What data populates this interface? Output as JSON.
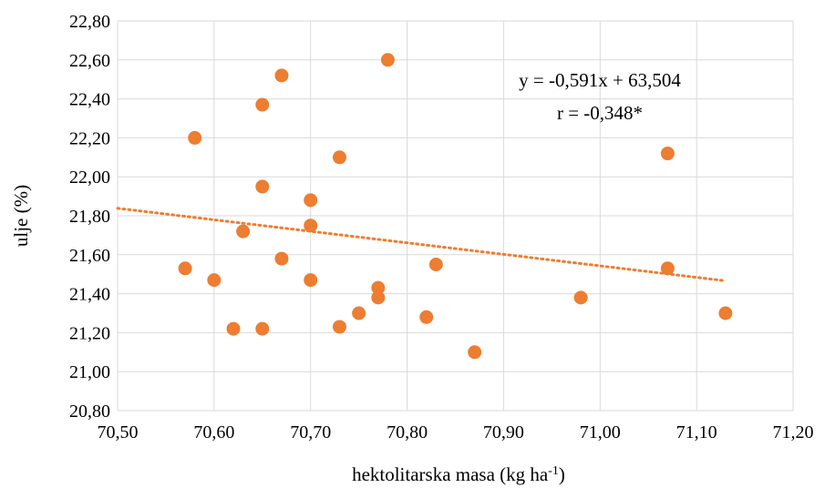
{
  "chart_data": {
    "type": "scatter",
    "xlabel": "hektolitarska masa (kg ha",
    "xlabel_sup": "-1",
    "xlabel_end": ")",
    "ylabel": "ulje (%)",
    "xlim": [
      70.5,
      71.2
    ],
    "ylim": [
      20.8,
      22.8
    ],
    "x_ticks": [
      70.5,
      70.6,
      70.7,
      70.8,
      70.9,
      71.0,
      71.1,
      71.2
    ],
    "y_ticks": [
      20.8,
      21.0,
      21.2,
      21.4,
      21.6,
      21.8,
      22.0,
      22.2,
      22.4,
      22.6,
      22.8
    ],
    "x_tick_labels": [
      "70,50",
      "70,60",
      "70,70",
      "70,80",
      "70,90",
      "71,00",
      "71,10",
      "71,20"
    ],
    "y_tick_labels": [
      "20,80",
      "21,00",
      "21,20",
      "21,40",
      "21,60",
      "21,80",
      "22,00",
      "22,20",
      "22,40",
      "22,60",
      "22,80"
    ],
    "grid": true,
    "marker_color": "#ed7d31",
    "trendline": {
      "type": "linear",
      "slope": -0.591,
      "intercept": 63.504,
      "x_range": [
        70.5,
        71.13
      ],
      "color": "#ed7d31",
      "style": "dotted"
    },
    "annotations": [
      "y = -0,591x + 63,504",
      "r = -0,348*"
    ],
    "points": [
      {
        "x": 70.57,
        "y": 21.53
      },
      {
        "x": 70.58,
        "y": 22.2
      },
      {
        "x": 70.6,
        "y": 21.47
      },
      {
        "x": 70.62,
        "y": 21.22
      },
      {
        "x": 70.63,
        "y": 21.72
      },
      {
        "x": 70.65,
        "y": 22.37
      },
      {
        "x": 70.65,
        "y": 21.95
      },
      {
        "x": 70.65,
        "y": 21.22
      },
      {
        "x": 70.67,
        "y": 22.52
      },
      {
        "x": 70.67,
        "y": 21.58
      },
      {
        "x": 70.7,
        "y": 21.88
      },
      {
        "x": 70.7,
        "y": 21.75
      },
      {
        "x": 70.7,
        "y": 21.47
      },
      {
        "x": 70.73,
        "y": 22.1
      },
      {
        "x": 70.73,
        "y": 21.23
      },
      {
        "x": 70.75,
        "y": 21.3
      },
      {
        "x": 70.77,
        "y": 21.43
      },
      {
        "x": 70.77,
        "y": 21.38
      },
      {
        "x": 70.78,
        "y": 22.6
      },
      {
        "x": 70.82,
        "y": 21.28
      },
      {
        "x": 70.83,
        "y": 21.55
      },
      {
        "x": 70.87,
        "y": 21.1
      },
      {
        "x": 70.98,
        "y": 21.38
      },
      {
        "x": 71.07,
        "y": 22.12
      },
      {
        "x": 71.07,
        "y": 21.53
      },
      {
        "x": 71.13,
        "y": 21.3
      }
    ]
  }
}
